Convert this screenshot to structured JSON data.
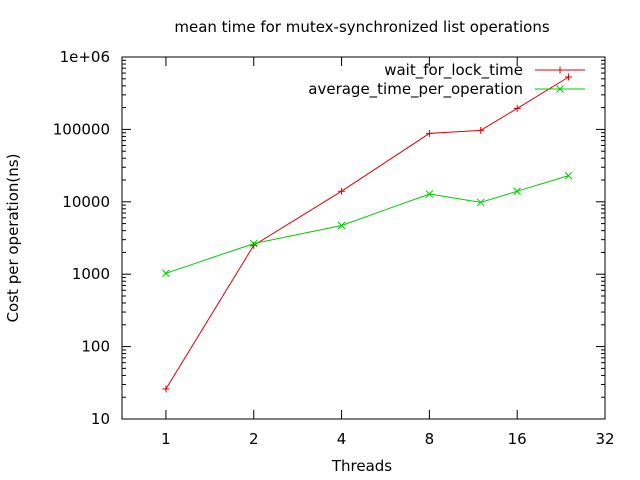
{
  "chart_data": {
    "type": "line",
    "title": "mean time for mutex-synchronized list operations",
    "xlabel": "Threads",
    "ylabel": "Cost per operation(ns)",
    "x_scale": "log2",
    "y_scale": "log10",
    "xlim": [
      0.707,
      32
    ],
    "ylim": [
      10,
      1000000
    ],
    "xticks": [
      1,
      2,
      4,
      8,
      16,
      32
    ],
    "xtick_labels": [
      "1",
      "2",
      "4",
      "8",
      "16",
      "32"
    ],
    "yticks": [
      10,
      100,
      1000,
      10000,
      100000,
      1000000
    ],
    "ytick_labels": [
      "10",
      "100",
      "1000",
      "10000",
      "100000",
      "1e+06"
    ],
    "grid": false,
    "legend_position": "top-right",
    "series": [
      {
        "name": "wait_for_lock_time",
        "color": "#e00000",
        "marker": "plus",
        "x": [
          1,
          2,
          4,
          8,
          12,
          16,
          24
        ],
        "values": [
          26,
          2500,
          14000,
          88000,
          97000,
          195000,
          530000
        ]
      },
      {
        "name": "average_time_per_operation",
        "color": "#00cc00",
        "marker": "cross",
        "x": [
          1,
          2,
          4,
          8,
          12,
          16,
          24
        ],
        "values": [
          1030,
          2650,
          4700,
          12800,
          9800,
          14000,
          23000
        ]
      }
    ]
  }
}
